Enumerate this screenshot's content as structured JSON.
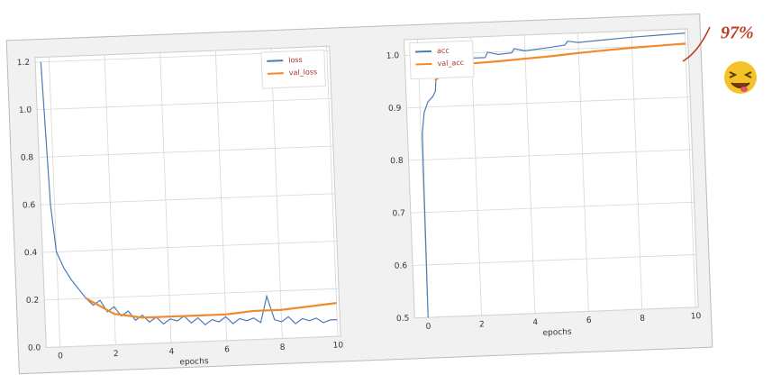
{
  "chart_data": [
    {
      "type": "line",
      "xlabel": "epochs",
      "xlim": [
        -0.5,
        10.1
      ],
      "xticks": [
        0,
        2,
        4,
        6,
        8,
        10
      ],
      "ylim": [
        0,
        1.22
      ],
      "yticks": [
        {
          "value": 0,
          "label": "0.0"
        },
        0.2,
        0.4,
        0.6,
        0.8,
        {
          "value": 1,
          "label": "1.0"
        },
        1.2
      ],
      "grid": true,
      "legend": "upper right",
      "series": [
        {
          "name": "loss",
          "color": "#4c7cb5",
          "x": [
            -0.3,
            -0.15,
            0,
            0.25,
            0.5,
            0.75,
            1,
            1.25,
            1.5,
            1.75,
            2,
            2.25,
            2.5,
            2.75,
            3,
            3.25,
            3.5,
            3.75,
            4,
            4.25,
            4.5,
            4.75,
            5,
            5.25,
            5.5,
            5.75,
            6,
            6.25,
            6.5,
            6.75,
            7,
            7.25,
            7.5,
            7.75,
            8,
            8.25,
            8.5,
            8.75,
            9,
            9.25,
            9.5,
            9.75,
            10
          ],
          "values": [
            1.2,
            0.6,
            0.4,
            0.33,
            0.28,
            0.24,
            0.2,
            0.17,
            0.19,
            0.14,
            0.16,
            0.12,
            0.14,
            0.1,
            0.12,
            0.09,
            0.11,
            0.08,
            0.1,
            0.09,
            0.11,
            0.08,
            0.1,
            0.07,
            0.09,
            0.08,
            0.1,
            0.07,
            0.09,
            0.08,
            0.09,
            0.07,
            0.18,
            0.08,
            0.07,
            0.09,
            0.06,
            0.08,
            0.07,
            0.08,
            0.06,
            0.07,
            0.07
          ]
        },
        {
          "name": "val_loss",
          "color": "#f08a2c",
          "x": [
            1,
            2,
            3,
            4,
            5,
            6,
            7,
            8,
            9,
            10
          ],
          "values": [
            0.2,
            0.13,
            0.11,
            0.11,
            0.11,
            0.11,
            0.12,
            0.12,
            0.13,
            0.14
          ]
        }
      ]
    },
    {
      "type": "line",
      "xlabel": "epochs",
      "xlim": [
        -0.5,
        10.1
      ],
      "xticks": [
        0,
        2,
        4,
        6,
        8,
        10
      ],
      "ylim": [
        0.5,
        1.03
      ],
      "yticks": [
        0.5,
        0.6,
        0.7,
        0.8,
        0.9,
        {
          "value": 1,
          "label": "1.0"
        }
      ],
      "grid": true,
      "legend": "upper left",
      "series": [
        {
          "name": "acc",
          "color": "#4c7cb5",
          "x": [
            0,
            0.05,
            0.15,
            0.3,
            0.5,
            0.6,
            0.65,
            1,
            1.5,
            1.6,
            2,
            2.5,
            2.6,
            3,
            3.5,
            3.6,
            4,
            5,
            5.5,
            5.6,
            6,
            7,
            8,
            9,
            10
          ],
          "values": [
            0.5,
            0.85,
            0.89,
            0.91,
            0.92,
            0.93,
            0.965,
            0.967,
            0.975,
            0.985,
            0.99,
            0.99,
            1.0,
            0.995,
            0.997,
            1.005,
            1.0,
            1.005,
            1.008,
            1.015,
            1.012,
            1.015,
            1.018,
            1.02,
            1.022
          ]
        },
        {
          "name": "val_acc",
          "color": "#f08a2c",
          "x": [
            0.6,
            1,
            1.5,
            2,
            3,
            4,
            5,
            6,
            7,
            8,
            9,
            10
          ],
          "values": [
            0.95,
            0.965,
            0.975,
            0.98,
            0.982,
            0.985,
            0.988,
            0.992,
            0.995,
            0.998,
            1.0,
            1.002
          ]
        }
      ]
    }
  ],
  "annotation": "97%"
}
